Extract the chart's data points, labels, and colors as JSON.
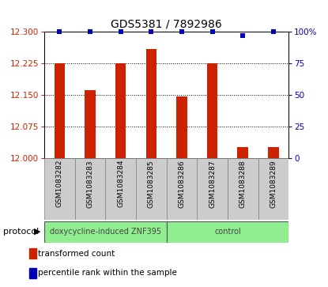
{
  "title": "GDS5381 / 7892986",
  "samples": [
    "GSM1083282",
    "GSM1083283",
    "GSM1083284",
    "GSM1083285",
    "GSM1083286",
    "GSM1083287",
    "GSM1083288",
    "GSM1083289"
  ],
  "red_values": [
    12.225,
    12.16,
    12.225,
    12.258,
    12.145,
    12.225,
    12.026,
    12.026
  ],
  "blue_values": [
    100,
    100,
    100,
    100,
    100,
    100,
    97,
    100
  ],
  "ymin": 12.0,
  "ymax": 12.3,
  "yticks_left": [
    12,
    12.075,
    12.15,
    12.225,
    12.3
  ],
  "yticks_right": [
    0,
    25,
    50,
    75,
    100
  ],
  "protocol_groups": [
    {
      "label": "doxycycline-induced ZNF395",
      "start": 0,
      "end": 3
    },
    {
      "label": "control",
      "start": 4,
      "end": 7
    }
  ],
  "bar_color": "#CC2200",
  "blue_color": "#0000BB",
  "bg_color": "#FFFFFF",
  "sample_box_color": "#CCCCCC",
  "protocol_color": "#90EE90",
  "protocol_arrow_label": "protocol",
  "legend_items": [
    {
      "color": "#CC2200",
      "label": "transformed count"
    },
    {
      "color": "#0000BB",
      "label": "percentile rank within the sample"
    }
  ],
  "bar_width": 0.35,
  "blue_marker_size": 5,
  "title_fontsize": 10,
  "axis_fontsize": 7.5,
  "sample_fontsize": 6.5,
  "protocol_fontsize": 7,
  "legend_fontsize": 7.5
}
